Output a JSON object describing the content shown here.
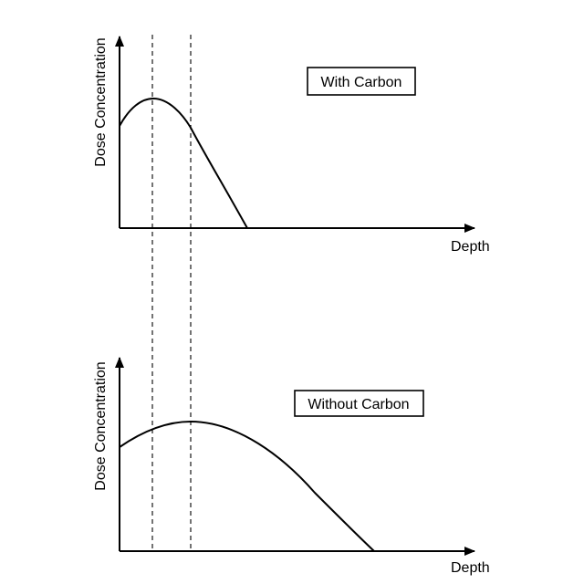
{
  "top_panel": {
    "y_axis_label": "Dose Concentration",
    "x_axis_label": "Depth",
    "legend": "With Carbon"
  },
  "bottom_panel": {
    "y_axis_label": "Dose Concentration",
    "x_axis_label": "Depth",
    "legend": "Without Carbon"
  },
  "colors": {
    "line": "#000000",
    "background": "#ffffff"
  }
}
